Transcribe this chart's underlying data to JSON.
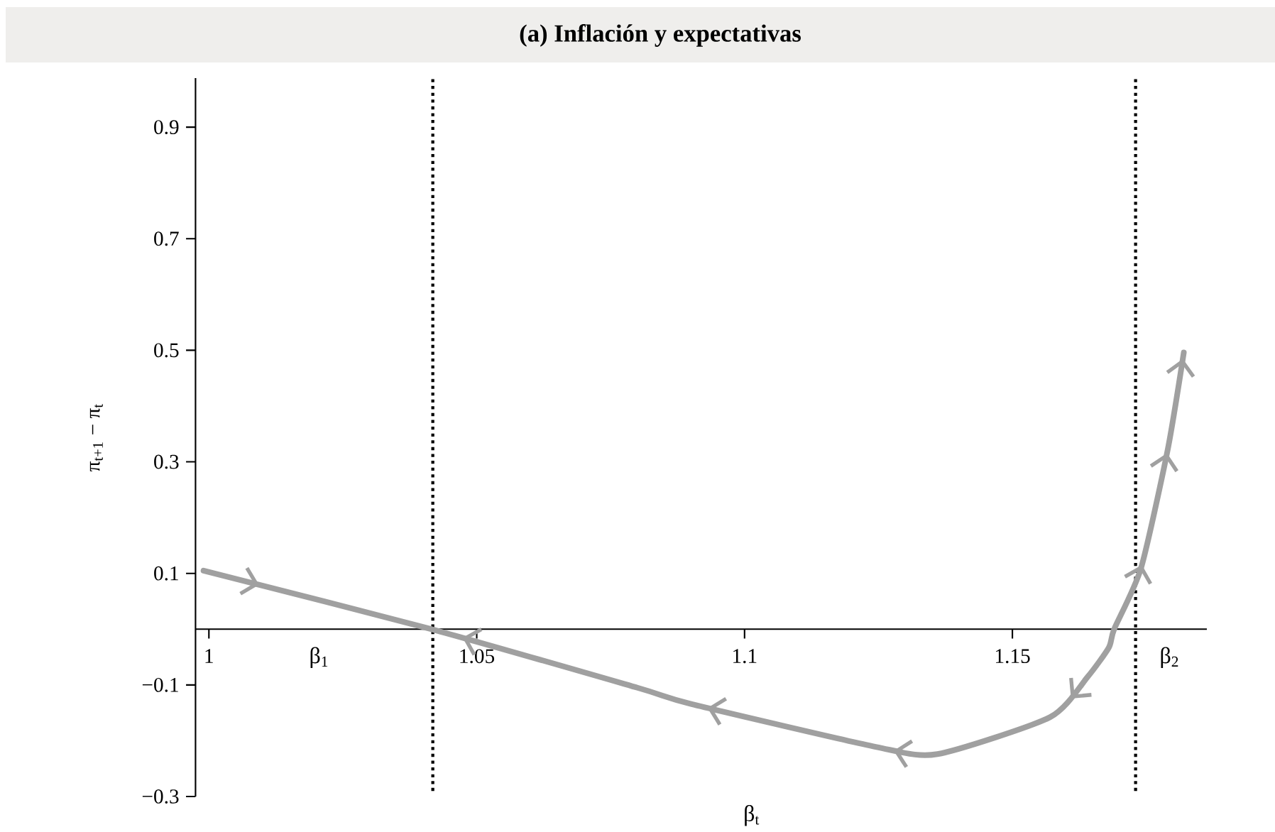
{
  "chart_data": {
    "type": "line",
    "title": "(a) Inflación y expectativas",
    "xlabel": "β$_{t}$",
    "ylabel": "π$_{t+1}$ − π$_{t}$",
    "xlim": [
      0.9975,
      1.1863
    ],
    "ylim": [
      -0.3,
      0.988
    ],
    "xticks": [
      1,
      1.05,
      1.1,
      1.15
    ],
    "yticks": [
      {
        "value": -0.3,
        "label": "−0.3"
      },
      {
        "value": -0.1,
        "label": "−0.1"
      },
      0.1,
      0.3,
      0.5,
      0.7,
      0.9
    ],
    "series": [
      {
        "color": "#a0a0a0",
        "x": [
          0.999,
          1.0416,
          1.08,
          1.09,
          1.1245,
          1.136,
          1.157,
          1.164,
          1.168,
          1.169,
          1.174,
          1.179,
          1.182
        ],
        "values": [
          0.105,
          0.0,
          -0.105,
          -0.134,
          -0.211,
          -0.224,
          -0.158,
          -0.086,
          -0.033,
          0.0,
          0.109,
          0.322,
          0.496
        ]
      }
    ],
    "ref_lines": [
      {
        "axis": "x",
        "value": 1.0418,
        "color": "#000000",
        "line_style": "dotted"
      },
      {
        "axis": "x",
        "value": 1.173,
        "color": "#000000",
        "line_style": "dotted"
      }
    ],
    "annotations": [
      "β$_{1}$",
      "β$_{2}$"
    ],
    "grid": false,
    "marker": "none",
    "line_style": "solid"
  }
}
